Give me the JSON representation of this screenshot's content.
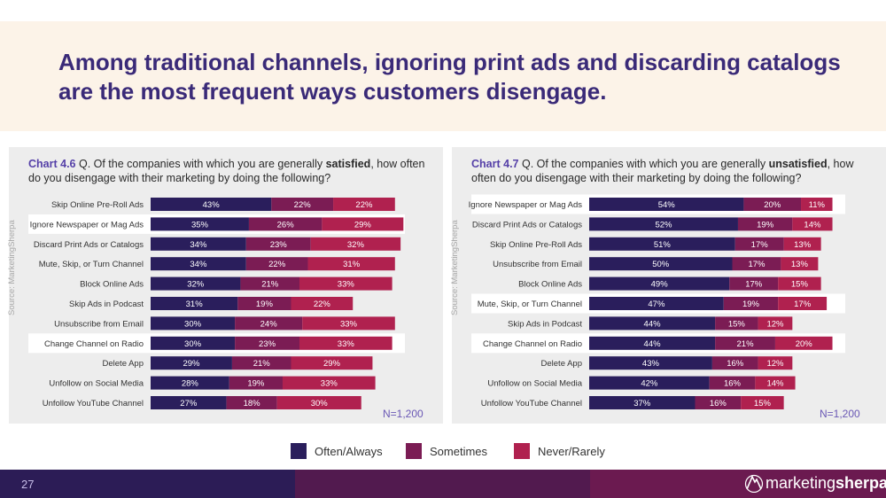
{
  "headline": "Among traditional channels, ignoring print ads and discarding catalogs are the most frequent ways customers disengage.",
  "colors": {
    "often": "#2a1e5c",
    "sometimes": "#7b1c54",
    "never": "#b0214f",
    "highlight": "#ffffff",
    "panel": "#ededed"
  },
  "legend": [
    "Often/Always",
    "Sometimes",
    "Never/Rarely"
  ],
  "source": "Source: MarketingSherpa",
  "page_number": "27",
  "brand": {
    "part1": "marketing",
    "part2": "sherpa"
  },
  "chart_data": [
    {
      "type": "bar",
      "orientation": "horizontal",
      "stacked": true,
      "chart_number": "Chart 4.6",
      "title_before": " Q. Of the companies with which you are generally ",
      "title_emphasis": "satisfied",
      "title_after": ", how often do you disengage with their marketing by doing the following?",
      "n_label": "N=1,200",
      "categories": [
        "Skip Online Pre-Roll Ads",
        "Ignore Newspaper or Mag Ads",
        "Discard Print Ads or Catalogs",
        "Mute, Skip, or Turn Channel",
        "Block Online Ads",
        "Skip Ads in Podcast",
        "Unsubscribe from Email",
        "Change Channel on Radio",
        "Delete App",
        "Unfollow on Social Media",
        "Unfollow YouTube Channel"
      ],
      "highlighted": [
        "Ignore Newspaper or Mag Ads",
        "Change Channel on Radio"
      ],
      "series": [
        {
          "name": "Often/Always",
          "values": [
            43,
            35,
            34,
            34,
            32,
            31,
            30,
            30,
            29,
            28,
            27
          ]
        },
        {
          "name": "Sometimes",
          "values": [
            22,
            26,
            23,
            22,
            21,
            19,
            24,
            23,
            21,
            19,
            18
          ]
        },
        {
          "name": "Never/Rarely",
          "values": [
            22,
            29,
            32,
            31,
            33,
            22,
            33,
            33,
            29,
            33,
            30
          ]
        }
      ],
      "unit": "%"
    },
    {
      "type": "bar",
      "orientation": "horizontal",
      "stacked": true,
      "chart_number": "Chart 4.7",
      "title_before": " Q. Of the companies with which you are generally ",
      "title_emphasis": "unsatisfied",
      "title_after": ", how often do you disengage with their marketing by doing the following?",
      "n_label": "N=1,200",
      "categories": [
        "Ignore Newspaper or Mag Ads",
        "Discard Print Ads or Catalogs",
        "Skip Online Pre-Roll Ads",
        "Unsubscribe from Email",
        "Block Online Ads",
        "Mute, Skip, or Turn Channel",
        "Skip Ads in Podcast",
        "Change Channel on Radio",
        "Delete App",
        "Unfollow on Social Media",
        "Unfollow YouTube Channel"
      ],
      "highlighted": [
        "Ignore Newspaper or Mag Ads",
        "Mute, Skip, or Turn Channel",
        "Change Channel on Radio"
      ],
      "series": [
        {
          "name": "Often/Always",
          "values": [
            54,
            52,
            51,
            50,
            49,
            47,
            44,
            44,
            43,
            42,
            37
          ]
        },
        {
          "name": "Sometimes",
          "values": [
            20,
            19,
            17,
            17,
            17,
            19,
            15,
            21,
            16,
            16,
            16
          ]
        },
        {
          "name": "Never/Rarely",
          "values": [
            11,
            14,
            13,
            13,
            15,
            17,
            12,
            20,
            12,
            14,
            15
          ]
        }
      ],
      "unit": "%"
    }
  ]
}
